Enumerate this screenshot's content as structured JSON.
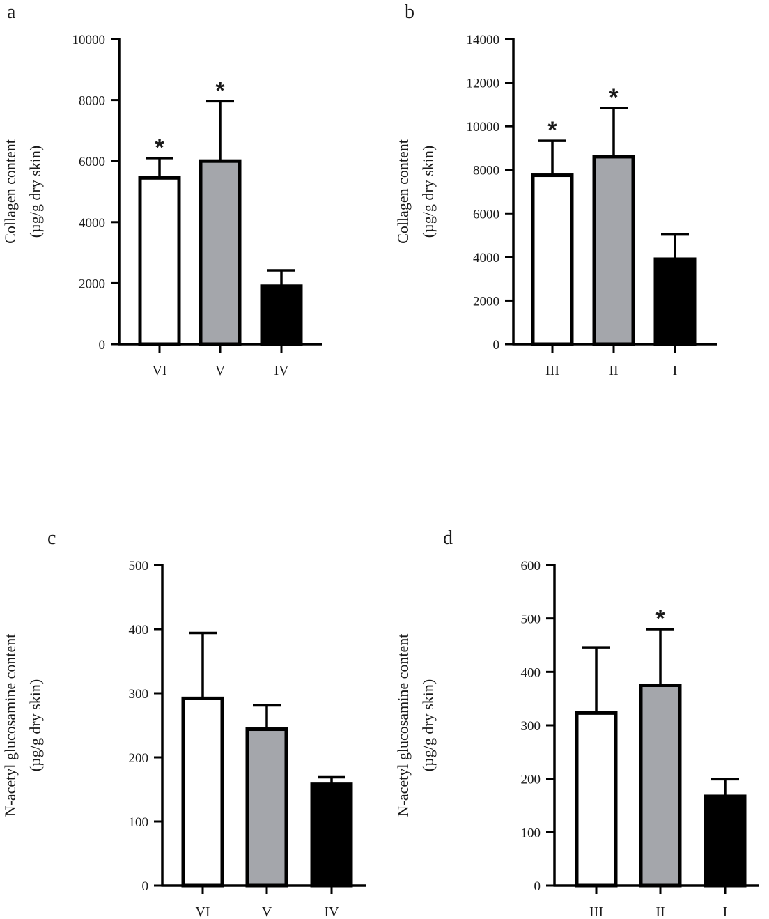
{
  "colors": {
    "white": "#ffffff",
    "gray": "#a4a6ab",
    "black": "#000000",
    "axis": "#000000"
  },
  "chart_data": [
    {
      "type": "bar",
      "panel": "a",
      "categories": [
        "VI",
        "V",
        "IV"
      ],
      "values": [
        5450,
        6000,
        1900
      ],
      "errors": [
        650,
        1960,
        520
      ],
      "fills": [
        "white",
        "gray",
        "black"
      ],
      "significant": [
        true,
        true,
        false
      ],
      "sig_marker": "*",
      "ylabel_lines": [
        "Collagen content",
        "(µg/g dry skin)"
      ],
      "ylim": [
        0,
        10000
      ],
      "yticks": [
        0,
        2000,
        4000,
        6000,
        8000,
        10000
      ]
    },
    {
      "type": "bar",
      "panel": "b",
      "categories": [
        "III",
        "II",
        "I"
      ],
      "values": [
        7750,
        8600,
        3900
      ],
      "errors": [
        1580,
        2230,
        1130
      ],
      "fills": [
        "white",
        "gray",
        "black"
      ],
      "significant": [
        true,
        true,
        false
      ],
      "sig_marker": "*",
      "ylabel_lines": [
        "Collagen content",
        "(µg/g dry skin)"
      ],
      "ylim": [
        0,
        14000
      ],
      "yticks": [
        0,
        2000,
        4000,
        6000,
        8000,
        10000,
        12000,
        14000
      ]
    },
    {
      "type": "bar",
      "panel": "c",
      "categories": [
        "VI",
        "V",
        "IV"
      ],
      "values": [
        292,
        244,
        158
      ],
      "errors": [
        102,
        37,
        11
      ],
      "fills": [
        "white",
        "gray",
        "black"
      ],
      "significant": [
        false,
        false,
        false
      ],
      "sig_marker": "*",
      "ylabel_lines": [
        "N-acetyl glucosamine content",
        "(µg/g dry skin)"
      ],
      "ylim": [
        0,
        500
      ],
      "yticks": [
        0,
        100,
        200,
        300,
        400,
        500
      ]
    },
    {
      "type": "bar",
      "panel": "d",
      "categories": [
        "III",
        "II",
        "I"
      ],
      "values": [
        323,
        375,
        167
      ],
      "errors": [
        123,
        105,
        32
      ],
      "fills": [
        "white",
        "gray",
        "black"
      ],
      "significant": [
        false,
        true,
        false
      ],
      "sig_marker": "*",
      "ylabel_lines": [
        "N-acetyl glucosamine content",
        "(µg/g dry skin)"
      ],
      "ylim": [
        0,
        600
      ],
      "yticks": [
        0,
        100,
        200,
        300,
        400,
        500,
        600
      ]
    }
  ]
}
